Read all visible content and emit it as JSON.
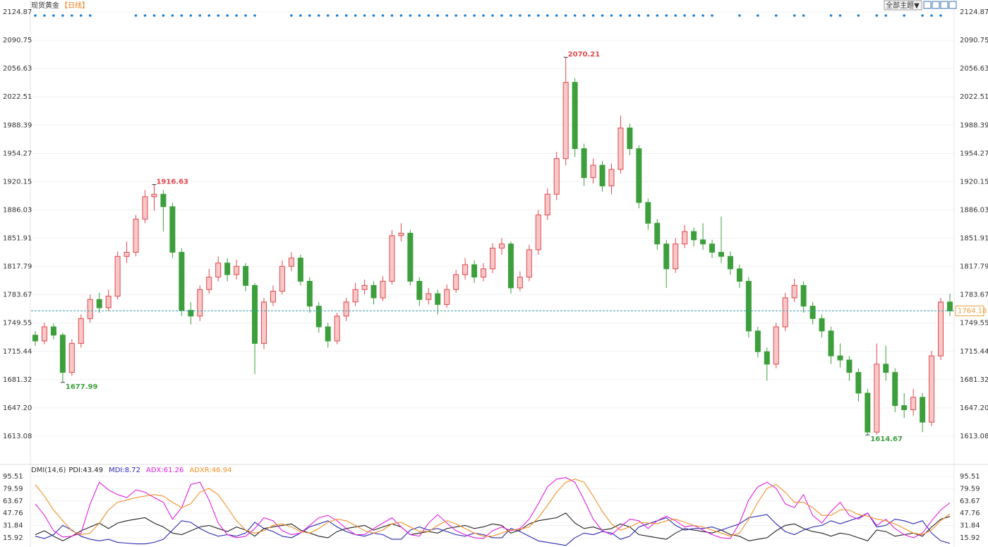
{
  "toolbar": {
    "button": "全部主题▼"
  },
  "chart_data": [
    {
      "type": "candlestick",
      "title": "现货黄金",
      "subtitle": "【日线】",
      "up_color": "#e0474c",
      "down_color": "#3c9f3c",
      "grid": true,
      "ylim": [
        1581.57,
        2130.83
      ],
      "yticks": [
        2124.87,
        2090.75,
        2056.63,
        2022.51,
        1988.39,
        1954.27,
        1920.15,
        1886.03,
        1851.91,
        1817.79,
        1783.67,
        1749.55,
        1715.44,
        1681.32,
        {
          "value": 1647.2,
          "label": "1647.20"
        },
        1613.08
      ],
      "signal_color": "#1f7fd1",
      "signal_candles": [
        0,
        1,
        2,
        3,
        4,
        5,
        6,
        11,
        12,
        13,
        14,
        15,
        16,
        17,
        18,
        19,
        20,
        21,
        22,
        23,
        24,
        28,
        29,
        30,
        31,
        32,
        33,
        34,
        35,
        36,
        37,
        38,
        39,
        40,
        41,
        42,
        43,
        44,
        45,
        46,
        47,
        48,
        49,
        50,
        51,
        52,
        53,
        54,
        55,
        56,
        57,
        58,
        59,
        60,
        61,
        62,
        63,
        64,
        65,
        66,
        67,
        68,
        69,
        70,
        71,
        72,
        73,
        74,
        77,
        79,
        81,
        83,
        84,
        87,
        88,
        90,
        92,
        93,
        95,
        97,
        98,
        99
      ],
      "candles": [
        [
          1735,
          1740,
          1722,
          1728
        ],
        [
          1728,
          1750,
          1724,
          1745
        ],
        [
          1745,
          1749,
          1730,
          1735
        ],
        [
          1735,
          1738,
          1677.99,
          1690
        ],
        [
          1690,
          1730,
          1686,
          1725
        ],
        [
          1725,
          1760,
          1720,
          1755
        ],
        [
          1755,
          1784,
          1750,
          1778
        ],
        [
          1778,
          1786,
          1762,
          1768
        ],
        [
          1768,
          1790,
          1764,
          1782
        ],
        [
          1782,
          1836,
          1778,
          1830
        ],
        [
          1830,
          1848,
          1822,
          1835
        ],
        [
          1835,
          1880,
          1830,
          1875
        ],
        [
          1875,
          1910,
          1870,
          1902
        ],
        [
          1902,
          1916.63,
          1885,
          1905
        ],
        [
          1905,
          1910,
          1860,
          1890
        ],
        [
          1890,
          1895,
          1828,
          1835
        ],
        [
          1835,
          1840,
          1758,
          1765
        ],
        [
          1765,
          1775,
          1748,
          1758
        ],
        [
          1758,
          1795,
          1752,
          1790
        ],
        [
          1790,
          1815,
          1785,
          1805
        ],
        [
          1805,
          1830,
          1800,
          1822
        ],
        [
          1822,
          1828,
          1800,
          1808
        ],
        [
          1808,
          1826,
          1802,
          1818
        ],
        [
          1818,
          1822,
          1788,
          1795
        ],
        [
          1795,
          1798,
          1688,
          1725
        ],
        [
          1725,
          1780,
          1718,
          1775
        ],
        [
          1775,
          1795,
          1770,
          1788
        ],
        [
          1788,
          1825,
          1784,
          1818
        ],
        [
          1818,
          1835,
          1812,
          1828
        ],
        [
          1828,
          1832,
          1795,
          1800
        ],
        [
          1800,
          1805,
          1762,
          1770
        ],
        [
          1770,
          1775,
          1738,
          1745
        ],
        [
          1745,
          1750,
          1720,
          1728
        ],
        [
          1728,
          1762,
          1724,
          1758
        ],
        [
          1758,
          1780,
          1752,
          1775
        ],
        [
          1775,
          1798,
          1770,
          1790
        ],
        [
          1790,
          1802,
          1784,
          1795
        ],
        [
          1795,
          1800,
          1772,
          1780
        ],
        [
          1780,
          1806,
          1776,
          1800
        ],
        [
          1800,
          1862,
          1796,
          1855
        ],
        [
          1855,
          1870,
          1848,
          1858
        ],
        [
          1858,
          1862,
          1795,
          1800
        ],
        [
          1800,
          1805,
          1770,
          1778
        ],
        [
          1778,
          1792,
          1772,
          1785
        ],
        [
          1785,
          1790,
          1760,
          1772
        ],
        [
          1772,
          1796,
          1768,
          1790
        ],
        [
          1790,
          1814,
          1786,
          1808
        ],
        [
          1808,
          1828,
          1802,
          1820
        ],
        [
          1820,
          1825,
          1798,
          1805
        ],
        [
          1805,
          1822,
          1800,
          1815
        ],
        [
          1815,
          1846,
          1810,
          1840
        ],
        [
          1840,
          1852,
          1832,
          1845
        ],
        [
          1845,
          1848,
          1785,
          1792
        ],
        [
          1792,
          1812,
          1788,
          1805
        ],
        [
          1805,
          1844,
          1800,
          1838
        ],
        [
          1838,
          1886,
          1832,
          1880
        ],
        [
          1880,
          1912,
          1874,
          1905
        ],
        [
          1905,
          1956,
          1898,
          1948
        ],
        [
          1948,
          2070.21,
          1940,
          2040
        ],
        [
          2040,
          2045,
          1950,
          1960
        ],
        [
          1960,
          1966,
          1915,
          1925
        ],
        [
          1925,
          1948,
          1918,
          1940
        ],
        [
          1940,
          1945,
          1908,
          1915
        ],
        [
          1915,
          1942,
          1905,
          1935
        ],
        [
          1935,
          2000,
          1930,
          1985
        ],
        [
          1985,
          1990,
          1952,
          1960
        ],
        [
          1960,
          1964,
          1888,
          1895
        ],
        [
          1895,
          1900,
          1862,
          1870
        ],
        [
          1870,
          1875,
          1838,
          1845
        ],
        [
          1845,
          1850,
          1792,
          1815
        ],
        [
          1815,
          1852,
          1810,
          1845
        ],
        [
          1845,
          1868,
          1840,
          1860
        ],
        [
          1860,
          1865,
          1842,
          1850
        ],
        [
          1850,
          1870,
          1838,
          1845
        ],
        [
          1845,
          1850,
          1828,
          1835
        ],
        [
          1835,
          1878,
          1822,
          1830
        ],
        [
          1830,
          1836,
          1808,
          1815
        ],
        [
          1815,
          1820,
          1792,
          1800
        ],
        [
          1800,
          1805,
          1732,
          1740
        ],
        [
          1740,
          1745,
          1708,
          1715
        ],
        [
          1715,
          1720,
          1680,
          1700
        ],
        [
          1700,
          1750,
          1695,
          1745
        ],
        [
          1745,
          1786,
          1740,
          1780
        ],
        [
          1780,
          1803,
          1775,
          1795
        ],
        [
          1795,
          1800,
          1762,
          1770
        ],
        [
          1770,
          1775,
          1748,
          1755
        ],
        [
          1755,
          1760,
          1732,
          1740
        ],
        [
          1740,
          1745,
          1700,
          1710
        ],
        [
          1710,
          1725,
          1696,
          1705
        ],
        [
          1705,
          1710,
          1680,
          1690
        ],
        [
          1690,
          1695,
          1655,
          1665
        ],
        [
          1665,
          1670,
          1614.67,
          1618
        ],
        [
          1618,
          1725,
          1615,
          1700
        ],
        [
          1700,
          1722,
          1680,
          1690
        ],
        [
          1690,
          1695,
          1642,
          1650
        ],
        [
          1650,
          1665,
          1635,
          1645
        ],
        [
          1645,
          1670,
          1638,
          1660
        ],
        [
          1660,
          1665,
          1618,
          1630
        ],
        [
          1630,
          1716,
          1625,
          1710
        ],
        [
          1710,
          1780,
          1705,
          1775
        ],
        [
          1775,
          1785,
          1758,
          1764.18
        ]
      ],
      "last_color": "#3aa0b0",
      "last_box_color": "#f0a040"
    },
    {
      "type": "line",
      "title": "DMI(14,6)",
      "grid": true,
      "ylim": [
        4,
        109.2
      ],
      "yticks": [
        95.51,
        79.59,
        63.67,
        47.76,
        31.84,
        15.92
      ],
      "series": [
        {
          "name": "PDI:",
          "color": "#222222",
          "values": [
            20,
            25,
            18,
            12,
            18,
            25,
            30,
            35,
            28,
            35,
            38,
            40,
            42,
            35,
            30,
            22,
            20,
            25,
            30,
            32,
            28,
            24,
            30,
            26,
            18,
            28,
            30,
            32,
            34,
            26,
            22,
            18,
            16,
            24,
            28,
            30,
            32,
            26,
            30,
            34,
            30,
            20,
            22,
            24,
            22,
            28,
            30,
            32,
            28,
            30,
            34,
            32,
            22,
            26,
            34,
            38,
            40,
            42,
            48,
            35,
            28,
            30,
            26,
            28,
            34,
            30,
            20,
            18,
            16,
            14,
            22,
            28,
            26,
            24,
            22,
            26,
            20,
            18,
            12,
            14,
            16,
            25,
            32,
            34,
            28,
            24,
            22,
            18,
            22,
            20,
            16,
            12,
            26,
            24,
            18,
            20,
            22,
            18,
            30,
            40,
            43.49
          ]
        },
        {
          "name": "MDI:",
          "color": "#2a2ab0",
          "values": [
            18,
            15,
            20,
            32,
            26,
            18,
            14,
            12,
            14,
            10,
            9,
            8,
            8,
            10,
            14,
            26,
            38,
            36,
            28,
            22,
            18,
            20,
            18,
            22,
            36,
            28,
            24,
            18,
            16,
            22,
            30,
            34,
            38,
            30,
            24,
            20,
            18,
            22,
            20,
            14,
            14,
            26,
            30,
            26,
            28,
            24,
            20,
            18,
            22,
            20,
            16,
            16,
            28,
            24,
            18,
            12,
            10,
            8,
            6,
            16,
            22,
            20,
            24,
            22,
            14,
            18,
            30,
            34,
            38,
            42,
            32,
            26,
            28,
            28,
            30,
            26,
            30,
            34,
            42,
            44,
            46,
            34,
            24,
            20,
            26,
            30,
            32,
            38,
            34,
            38,
            42,
            48,
            30,
            32,
            40,
            38,
            34,
            38,
            22,
            12,
            8.72
          ]
        },
        {
          "name": "ADX:",
          "color": "#e020e0",
          "values": [
            60,
            45,
            25,
            17,
            18,
            22,
            60,
            88,
            78,
            72,
            68,
            78,
            75,
            68,
            62,
            40,
            55,
            85,
            88,
            65,
            35,
            20,
            16,
            18,
            28,
            42,
            38,
            25,
            20,
            22,
            32,
            42,
            45,
            38,
            28,
            20,
            20,
            28,
            35,
            42,
            30,
            20,
            18,
            35,
            46,
            35,
            25,
            20,
            16,
            15,
            25,
            30,
            25,
            28,
            40,
            60,
            82,
            92,
            94,
            88,
            65,
            40,
            25,
            20,
            30,
            40,
            38,
            28,
            38,
            44,
            38,
            30,
            32,
            26,
            20,
            16,
            15,
            35,
            65,
            82,
            88,
            80,
            60,
            55,
            72,
            45,
            35,
            50,
            62,
            45,
            40,
            48,
            32,
            40,
            28,
            20,
            16,
            22,
            38,
            52,
            61.26
          ]
        },
        {
          "name": "ADXR:",
          "color": "#f0902a",
          "values": [
            85,
            70,
            52,
            38,
            25,
            20,
            22,
            35,
            52,
            62,
            65,
            68,
            70,
            72,
            70,
            62,
            55,
            60,
            75,
            80,
            72,
            55,
            38,
            26,
            22,
            25,
            32,
            34,
            30,
            24,
            22,
            28,
            36,
            40,
            38,
            32,
            25,
            22,
            26,
            34,
            36,
            30,
            24,
            24,
            32,
            38,
            34,
            28,
            22,
            18,
            18,
            22,
            26,
            27,
            30,
            42,
            58,
            75,
            88,
            92,
            88,
            70,
            50,
            34,
            26,
            30,
            36,
            35,
            34,
            38,
            40,
            36,
            32,
            30,
            26,
            22,
            18,
            22,
            40,
            62,
            80,
            85,
            75,
            62,
            62,
            55,
            45,
            45,
            52,
            52,
            46,
            44,
            40,
            38,
            34,
            28,
            22,
            20,
            26,
            38,
            46.94
          ]
        }
      ]
    }
  ]
}
